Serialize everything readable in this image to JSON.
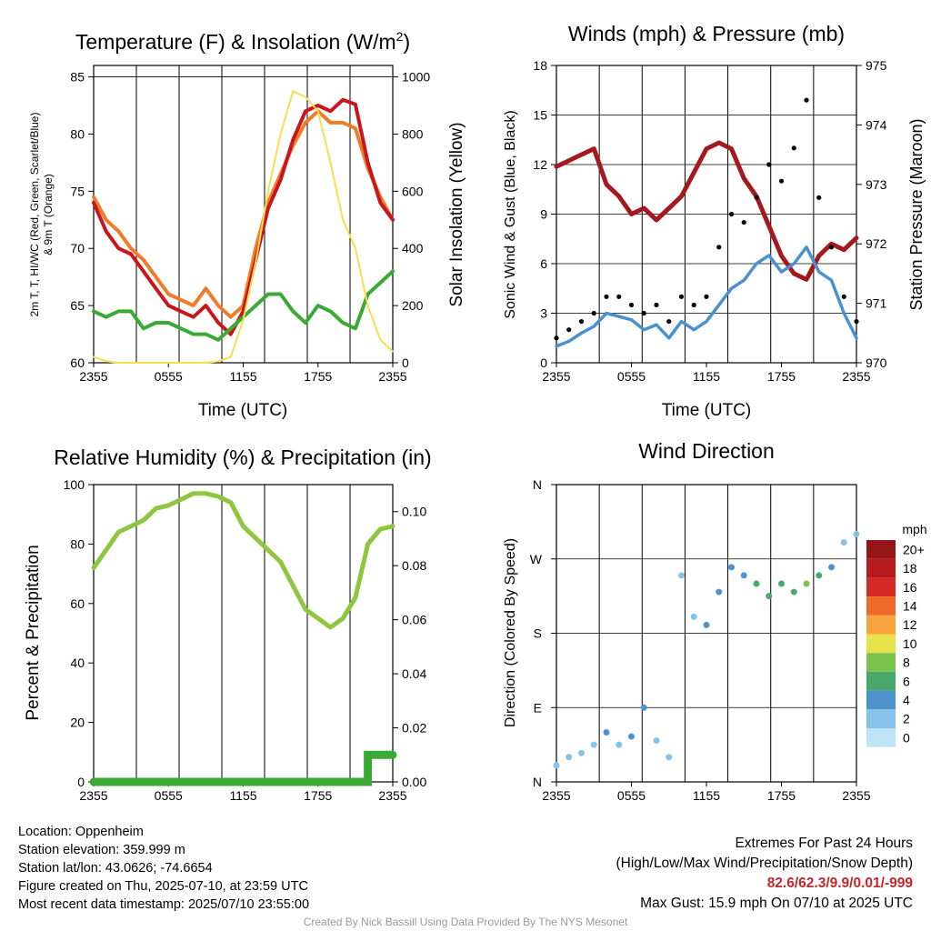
{
  "x_ticks": [
    "2355",
    "0555",
    "1155",
    "1755",
    "2355"
  ],
  "info": {
    "location": "Location: Oppenheim",
    "elevation": "Station elevation: 359.999 m",
    "latlon": "Station lat/lon: 43.0626; -74.6654",
    "created": "Figure created on Thu, 2025-07-10, at 23:59 UTC",
    "recent": "Most recent data timestamp: 2025/07/10 23:55:00"
  },
  "extremes": {
    "title": "Extremes For Past 24 Hours",
    "subtitle": "(High/Low/Max Wind/Precipitation/Snow Depth)",
    "values": "82.6/62.3/9.9/0.01/-999",
    "gust": "Max Gust: 15.9 mph On 07/10 at 2025 UTC"
  },
  "credit": "Created By Nick Bassill Using Data Provided By The NYS Mesonet",
  "colors": {
    "temp2m": "#c8171c",
    "dew": "#3aaa35",
    "temp9m": "#f07c2a",
    "solar": "#f4e04d",
    "wind": "#4a90d0",
    "gust": "#000000",
    "pressure": "#a3191e",
    "rh": "#8dc63f",
    "precip": "#3aaa35",
    "speed_scale": [
      "#bfe3f7",
      "#85c3ea",
      "#4f93cd",
      "#4aa86a",
      "#7cc24f",
      "#e7e14a",
      "#f7a43f",
      "#f06a2a",
      "#d52a25",
      "#b8191c",
      "#961518"
    ]
  },
  "chart_data": [
    {
      "type": "line",
      "title_main": "Temperature (F) & Insolation (W/m",
      "title_sup": "2",
      "title_end": ")",
      "ylabel_line1": "2m T, T, HI/WC (Red, Green, Scarlet/Blue)",
      "ylabel_line2": "& 9m T (Orange)",
      "y2label": "Solar Insolation (Yellow)",
      "xlabel": "Time (UTC)",
      "ylim": [
        60,
        86
      ],
      "y2lim": [
        0,
        1040
      ],
      "yticks": [
        60,
        65,
        70,
        75,
        80,
        85
      ],
      "y2ticks": [
        0,
        200,
        400,
        600,
        800,
        1000
      ],
      "x": [
        0,
        1,
        2,
        3,
        4,
        5,
        6,
        7,
        8,
        9,
        10,
        11,
        12,
        13,
        14,
        15,
        16,
        17,
        18,
        19,
        20,
        21,
        22,
        23,
        24
      ],
      "series": [
        {
          "key": "temp9m",
          "values": [
            74.5,
            72.5,
            71.5,
            70.0,
            69.0,
            67.5,
            66.0,
            65.5,
            65.0,
            66.5,
            65.0,
            64.0,
            65.0,
            70.0,
            74.0,
            76.5,
            79.0,
            81.0,
            82.0,
            81.0,
            81.0,
            80.5,
            77.0,
            74.5,
            72.5
          ]
        },
        {
          "key": "temp2m",
          "values": [
            74.0,
            71.5,
            70.0,
            69.5,
            68.0,
            66.5,
            65.0,
            64.5,
            64.0,
            65.0,
            63.5,
            62.5,
            64.5,
            69.0,
            73.5,
            76.0,
            79.5,
            82.0,
            82.5,
            82.0,
            83.0,
            82.6,
            77.5,
            74.0,
            72.5
          ]
        },
        {
          "key": "dew",
          "values": [
            64.5,
            64.0,
            64.5,
            64.5,
            63.0,
            63.5,
            63.5,
            63.0,
            62.5,
            62.5,
            62.0,
            63.0,
            64.0,
            65.0,
            66.0,
            66.0,
            64.5,
            63.5,
            65.0,
            64.5,
            63.5,
            63.0,
            66.0,
            67.0,
            68.0
          ]
        },
        {
          "key": "solar",
          "values": [
            20,
            5,
            0,
            0,
            0,
            0,
            0,
            0,
            0,
            0,
            5,
            20,
            150,
            350,
            600,
            800,
            950,
            930,
            880,
            700,
            500,
            400,
            200,
            80,
            40
          ]
        }
      ]
    },
    {
      "type": "line",
      "title": "Winds (mph) & Pressure (mb)",
      "ylabel": "Sonic Wind & Gust (Blue, Black)",
      "y2label": "Station Pressure (Maroon)",
      "xlabel": "Time (UTC)",
      "ylim": [
        0,
        18
      ],
      "y2lim": [
        970,
        975
      ],
      "yticks": [
        0,
        3,
        6,
        9,
        12,
        15,
        18
      ],
      "y2ticks": [
        970,
        971,
        972,
        973,
        974,
        975
      ],
      "x": [
        0,
        1,
        2,
        3,
        4,
        5,
        6,
        7,
        8,
        9,
        10,
        11,
        12,
        13,
        14,
        15,
        16,
        17,
        18,
        19,
        20,
        21,
        22,
        23,
        24
      ],
      "series": [
        {
          "key": "pressure",
          "values": [
            973.3,
            973.4,
            973.5,
            973.6,
            973.0,
            972.8,
            972.5,
            972.6,
            972.4,
            972.6,
            972.8,
            973.2,
            973.6,
            973.7,
            973.6,
            973.1,
            972.8,
            972.3,
            971.8,
            971.5,
            971.4,
            971.8,
            972.0,
            971.9,
            972.1
          ]
        },
        {
          "key": "wind",
          "values": [
            1.0,
            1.3,
            1.8,
            2.2,
            3.0,
            2.8,
            2.6,
            2.0,
            2.3,
            1.5,
            2.5,
            2.0,
            2.5,
            3.5,
            4.5,
            5.0,
            6.0,
            6.5,
            5.5,
            6.0,
            7.0,
            5.5,
            5.0,
            3.0,
            1.5
          ]
        },
        {
          "key": "gust",
          "values": [
            1.5,
            2.0,
            2.5,
            3.0,
            4.0,
            4.0,
            3.5,
            3.0,
            3.5,
            2.5,
            4.0,
            3.5,
            4.0,
            7.0,
            9.0,
            8.5,
            10.0,
            12.0,
            11.0,
            13.0,
            15.9,
            10.0,
            7.0,
            4.0,
            2.5
          ]
        }
      ]
    },
    {
      "type": "line",
      "title": "Relative Humidity (%) & Precipitation (in)",
      "ylabel": "Percent & Precipitation",
      "ylim": [
        0,
        100
      ],
      "y2lim": [
        0,
        0.11
      ],
      "yticks": [
        0,
        20,
        40,
        60,
        80,
        100
      ],
      "y2ticks": [
        0.0,
        0.02,
        0.04,
        0.06,
        0.08,
        0.1
      ],
      "y2ticklabels": [
        "0.00",
        "0.02",
        "0.04",
        "0.06",
        "0.08",
        "0.10"
      ],
      "x": [
        0,
        1,
        2,
        3,
        4,
        5,
        6,
        7,
        8,
        9,
        10,
        11,
        12,
        13,
        14,
        15,
        16,
        17,
        18,
        19,
        20,
        21,
        22,
        23,
        24
      ],
      "series": [
        {
          "key": "rh",
          "values": [
            72,
            78,
            84,
            86,
            88,
            92,
            93,
            95,
            97,
            97,
            96,
            94,
            86,
            82,
            78,
            74,
            66,
            58,
            55,
            52,
            55,
            62,
            80,
            85,
            86
          ]
        },
        {
          "key": "precip",
          "values": [
            0,
            0,
            0,
            0,
            0,
            0,
            0,
            0,
            0,
            0,
            0,
            0,
            0,
            0,
            0,
            0,
            0,
            0,
            0,
            0,
            0,
            0,
            0.01,
            0.01,
            0.01
          ]
        }
      ]
    },
    {
      "type": "scatter",
      "title": "Wind Direction",
      "ylabel": "Direction (Colored By Speed)",
      "yticks": [
        "N",
        "E",
        "S",
        "W",
        "N"
      ],
      "legend_title": "mph",
      "legend_labels": [
        "0",
        "2",
        "4",
        "6",
        "8",
        "10",
        "12",
        "14",
        "16",
        "18",
        "20+"
      ],
      "x": [
        0,
        1,
        2,
        3,
        4,
        5,
        6,
        7,
        8,
        9,
        10,
        11,
        12,
        13,
        14,
        15,
        16,
        17,
        18,
        19,
        20,
        21,
        22,
        23,
        24
      ],
      "direction_deg": [
        20,
        30,
        35,
        45,
        60,
        45,
        55,
        90,
        50,
        30,
        250,
        200,
        190,
        230,
        260,
        250,
        240,
        225,
        240,
        230,
        240,
        250,
        260,
        290,
        300
      ],
      "speed_mph": [
        1,
        1,
        2,
        2,
        3,
        2,
        3,
        3,
        2,
        2,
        2,
        2,
        3,
        3,
        4,
        4,
        5,
        6,
        5,
        6,
        7,
        5,
        4,
        2,
        1
      ]
    }
  ]
}
